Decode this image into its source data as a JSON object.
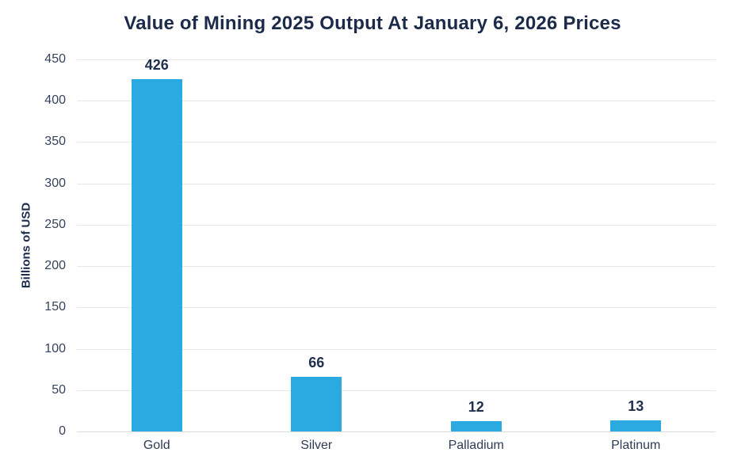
{
  "chart_data": {
    "type": "bar",
    "title": "Value of Mining 2025 Output At January 6, 2026 Prices",
    "categories": [
      "Gold",
      "Silver",
      "Palladium",
      "Platinum"
    ],
    "values": [
      426,
      66,
      12,
      13
    ],
    "xlabel": "",
    "ylabel": "Billions of USD",
    "ylim": [
      0,
      450
    ],
    "yticks": [
      0,
      50,
      100,
      150,
      200,
      250,
      300,
      350,
      400,
      450
    ],
    "grid": true,
    "legend": false,
    "data_labels": true,
    "bar_color": "#2AAAE1",
    "title_color": "#1C2B4A",
    "value_label_color": "#20304C",
    "axis_text_color": "#36435C",
    "gridline_color": "#E7E7E7"
  }
}
